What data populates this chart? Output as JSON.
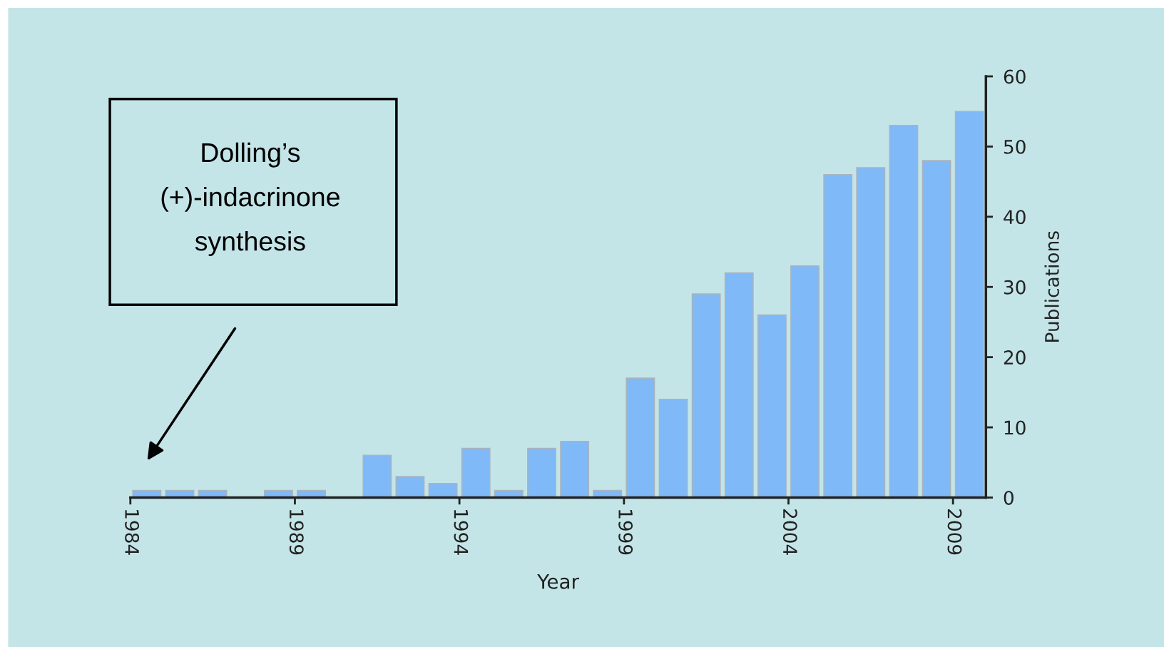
{
  "chart_data": {
    "type": "bar",
    "xlabel": "Year",
    "ylabel": "Publications",
    "x": [
      1984.5,
      1985.5,
      1986.5,
      1987.5,
      1988.5,
      1989.5,
      1990.5,
      1991.5,
      1992.5,
      1993.5,
      1994.5,
      1995.5,
      1996.5,
      1997.5,
      1998.5,
      1999.5,
      2000.5,
      2001.5,
      2002.5,
      2003.5,
      2004.5,
      2005.5,
      2006.5,
      2007.5,
      2008.5,
      2009.5
    ],
    "values": [
      1,
      1,
      1,
      0,
      1,
      1,
      0,
      6,
      3,
      2,
      7,
      1,
      7,
      8,
      1,
      17,
      14,
      29,
      32,
      26,
      33,
      46,
      47,
      53,
      48,
      55
    ],
    "color": "#7fb9f7",
    "xlim": [
      1984,
      2010
    ],
    "xticks": [
      1984,
      1989,
      1994,
      1999,
      2004,
      2009
    ],
    "ylim": [
      0,
      60
    ],
    "yticks": [
      0,
      10,
      20,
      30,
      40,
      50,
      60
    ],
    "grid": false,
    "annotations": [
      "Dolling’s\n(+)-indacrinone\nsynthesis"
    ]
  }
}
